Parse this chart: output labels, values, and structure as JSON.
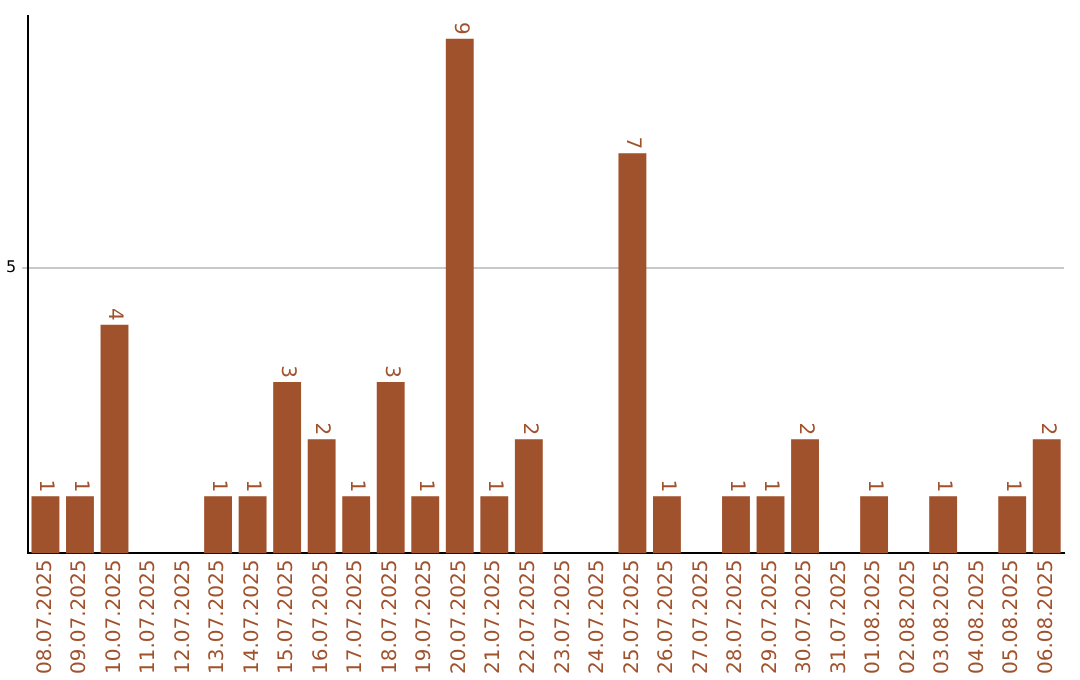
{
  "chart_data": {
    "type": "bar",
    "categories": [
      "08.07.2025",
      "09.07.2025",
      "10.07.2025",
      "11.07.2025",
      "12.07.2025",
      "13.07.2025",
      "14.07.2025",
      "15.07.2025",
      "16.07.2025",
      "17.07.2025",
      "18.07.2025",
      "19.07.2025",
      "20.07.2025",
      "21.07.2025",
      "22.07.2025",
      "23.07.2025",
      "24.07.2025",
      "25.07.2025",
      "26.07.2025",
      "27.07.2025",
      "28.07.2025",
      "29.07.2025",
      "30.07.2025",
      "31.07.2025",
      "01.08.2025",
      "02.08.2025",
      "03.08.2025",
      "04.08.2025",
      "05.08.2025",
      "06.08.2025"
    ],
    "values": [
      1,
      1,
      4,
      0,
      0,
      1,
      1,
      3,
      2,
      1,
      3,
      1,
      9,
      1,
      2,
      0,
      0,
      7,
      1,
      0,
      1,
      1,
      2,
      0,
      1,
      0,
      1,
      0,
      1,
      2
    ],
    "value_labels": [
      "1",
      "1",
      "4",
      null,
      null,
      "1",
      "1",
      "3",
      "2",
      "1",
      "3",
      "1",
      "9",
      "1",
      "2",
      null,
      null,
      "7",
      "1",
      null,
      "1",
      "1",
      "2",
      null,
      "1",
      null,
      "1",
      null,
      "1",
      "2"
    ],
    "color": "#a0522d",
    "ylim": [
      0,
      9.4
    ],
    "yticks": [
      5
    ],
    "grid": "y",
    "legend": false
  }
}
